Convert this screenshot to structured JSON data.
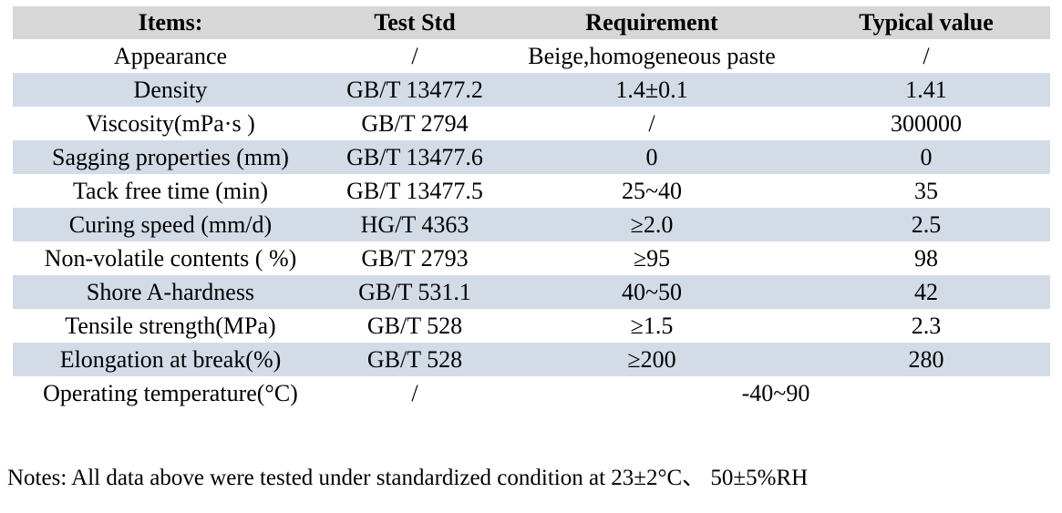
{
  "table": {
    "headers": {
      "items": "Items:",
      "test_std": "Test Std",
      "requirement": "Requirement",
      "typical_value": "Typical value"
    },
    "rows": [
      {
        "item": "Appearance",
        "std": "/",
        "req": "Beige,homogeneous paste",
        "typ": "/"
      },
      {
        "item": "Density",
        "std": "GB/T 13477.2",
        "req": "1.4±0.1",
        "typ": "1.41"
      },
      {
        "item": "Viscosity(mPa·s )",
        "std": "GB/T 2794",
        "req": "/",
        "typ": "300000"
      },
      {
        "item": "Sagging properties (mm)",
        "std": "GB/T 13477.6",
        "req": "0",
        "typ": "0"
      },
      {
        "item": "Tack free time (min)",
        "std": "GB/T 13477.5",
        "req": "25~40",
        "typ": "35"
      },
      {
        "item": "Curing speed (mm/d)",
        "std": "HG/T 4363",
        "req": "≥2.0",
        "typ": "2.5"
      },
      {
        "item": "Non-volatile contents ( %)",
        "std": "GB/T 2793",
        "req": "≥95",
        "typ": "98"
      },
      {
        "item": "Shore A-hardness",
        "std": "GB/T 531.1",
        "req": "40~50",
        "typ": "42"
      },
      {
        "item": "Tensile strength(MPa)",
        "std": "GB/T 528",
        "req": "≥1.5",
        "typ": "2.3"
      },
      {
        "item": "Elongation at break(%)",
        "std": "GB/T 528",
        "req": "≥200",
        "typ": "280"
      },
      {
        "item": "Operating temperature(°C)",
        "std": "/",
        "req": "-40~90",
        "typ": "",
        "merged": true
      }
    ],
    "colors": {
      "header_bg": "#d7d7d7",
      "alt_row_bg": "#d3dbe7",
      "row_bg": "#ffffff",
      "text": "#000000"
    }
  },
  "notes": "Notes: All data above were tested under standardized condition at 23±2°C、 50±5%RH"
}
